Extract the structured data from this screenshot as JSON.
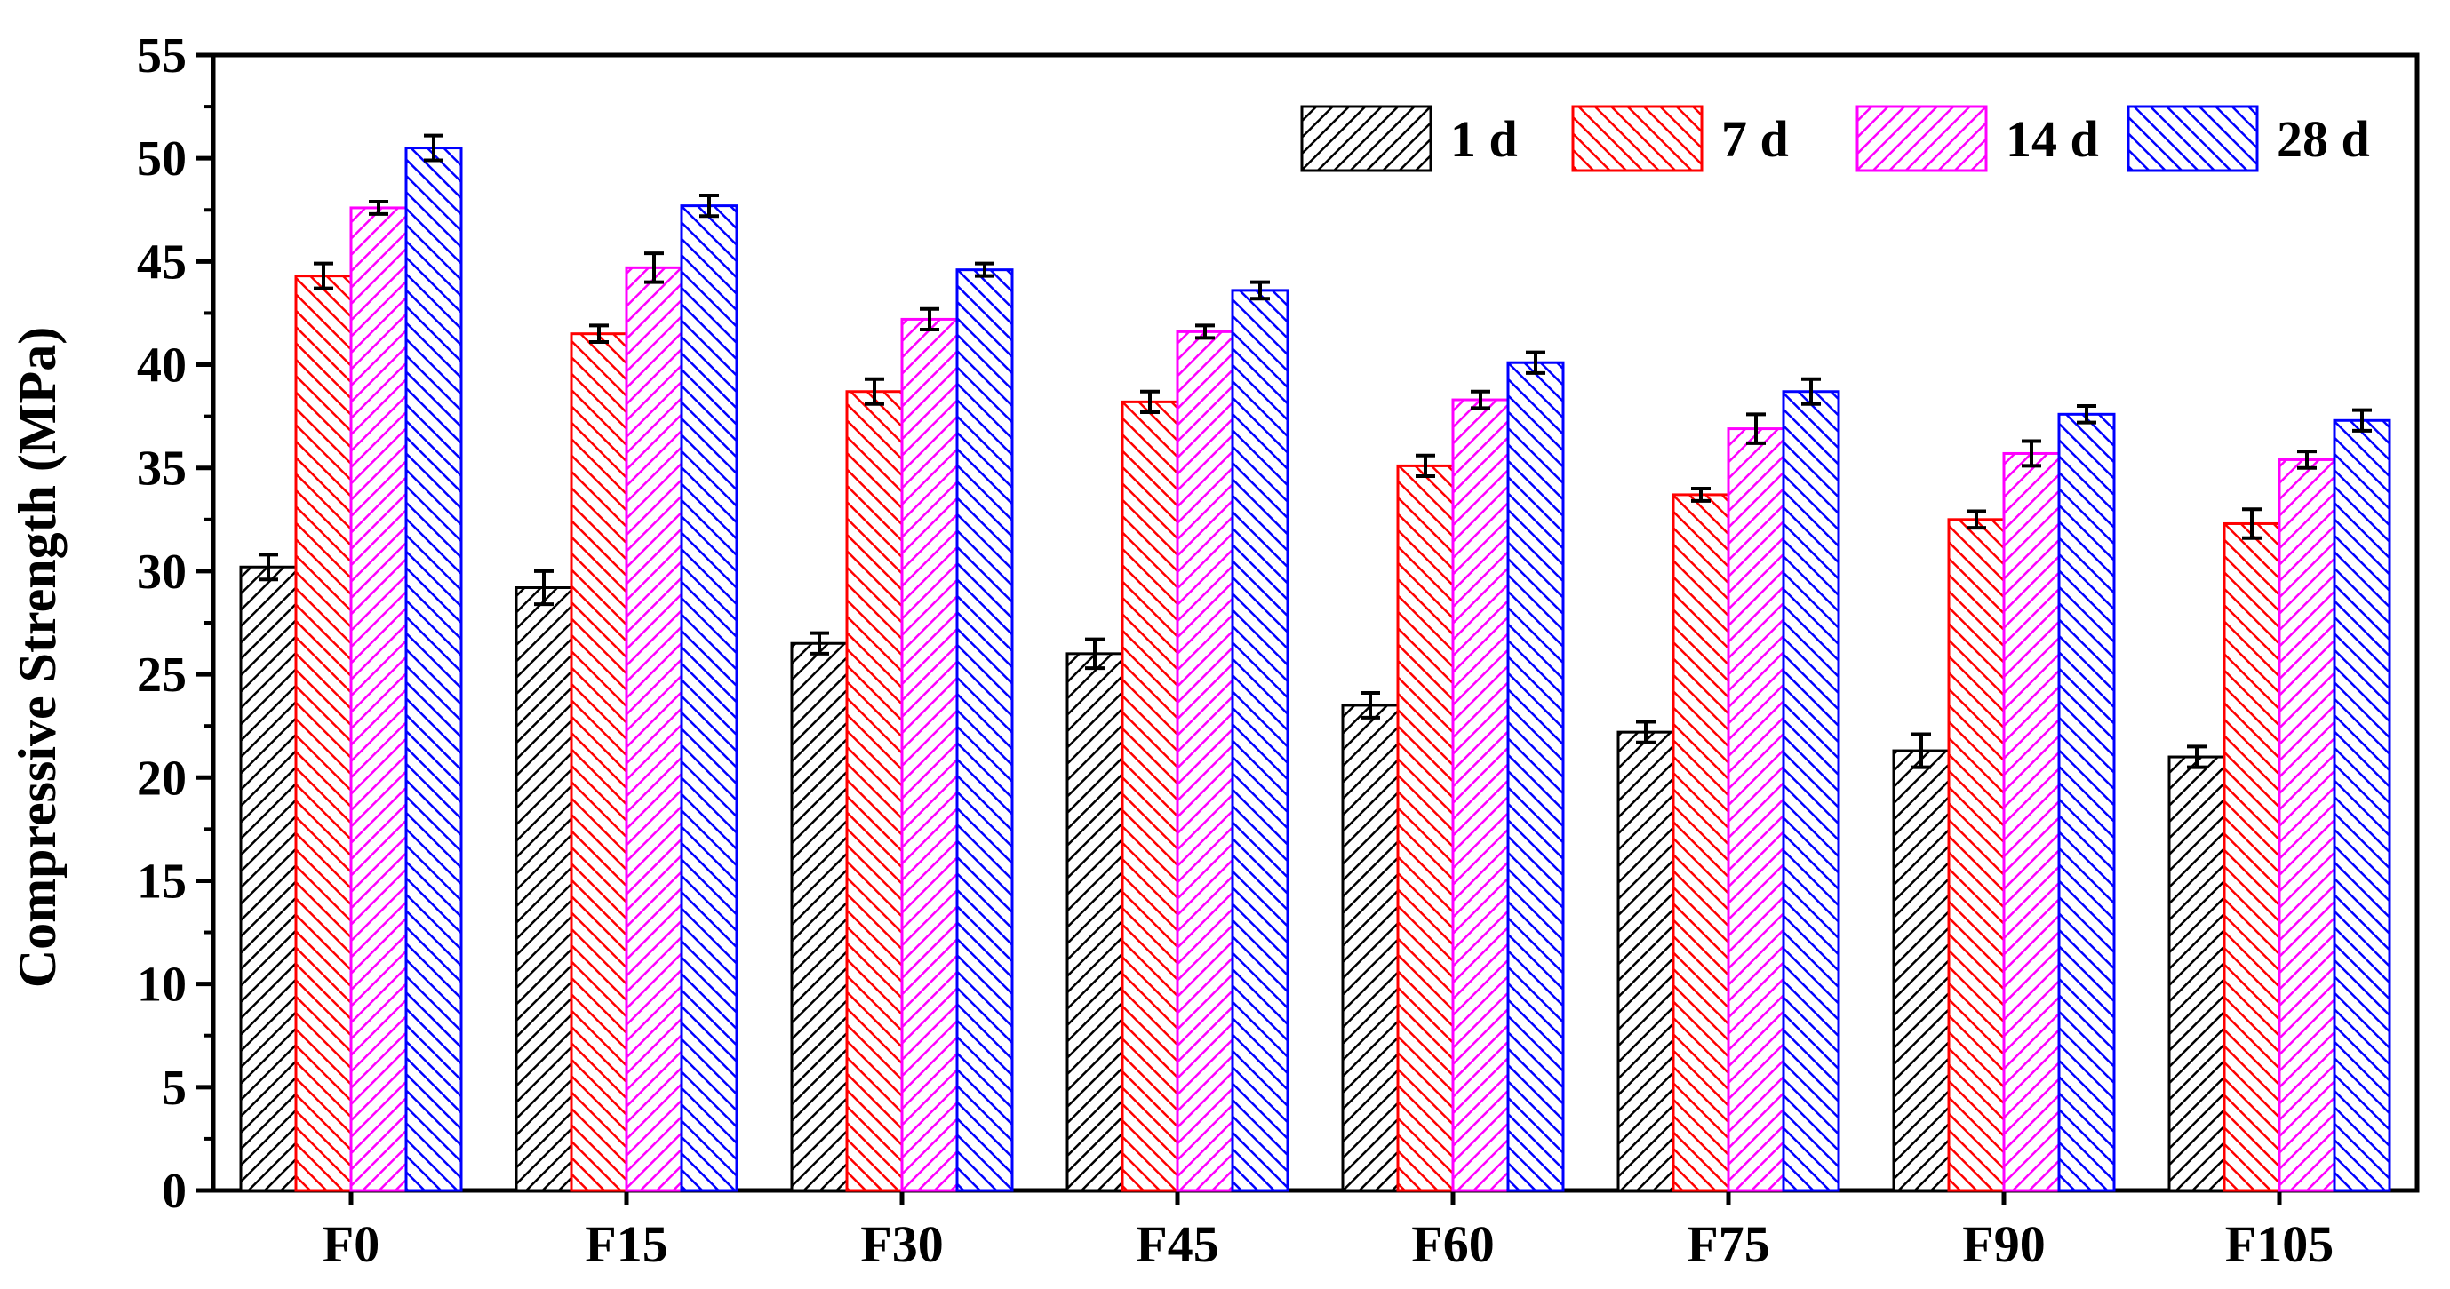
{
  "chart_data": {
    "type": "bar",
    "title": "",
    "xlabel": "",
    "ylabel": "Compressive Strength (MPa)",
    "ylim": [
      0,
      55
    ],
    "yticks": [
      0,
      5,
      10,
      15,
      20,
      25,
      30,
      35,
      40,
      45,
      50,
      55
    ],
    "grid": false,
    "legend_position": "top-right",
    "categories": [
      "F0",
      "F15",
      "F30",
      "F45",
      "F60",
      "F75",
      "F90",
      "F105"
    ],
    "series": [
      {
        "name": "1 d",
        "color": "#000000",
        "values": [
          30.2,
          29.2,
          26.5,
          26.0,
          23.5,
          22.2,
          21.3,
          21.0
        ],
        "errors": [
          0.6,
          0.8,
          0.5,
          0.7,
          0.6,
          0.5,
          0.8,
          0.5
        ]
      },
      {
        "name": "7 d",
        "color": "#ff0000",
        "values": [
          44.3,
          41.5,
          38.7,
          38.2,
          35.1,
          33.7,
          32.5,
          32.3
        ],
        "errors": [
          0.6,
          0.4,
          0.6,
          0.5,
          0.5,
          0.3,
          0.4,
          0.7
        ]
      },
      {
        "name": "14 d",
        "color": "#ff00ff",
        "values": [
          47.6,
          44.7,
          42.2,
          41.6,
          38.3,
          36.9,
          35.7,
          35.4
        ],
        "errors": [
          0.3,
          0.7,
          0.5,
          0.3,
          0.4,
          0.7,
          0.6,
          0.4
        ]
      },
      {
        "name": "28 d",
        "color": "#0000ff",
        "values": [
          50.5,
          47.7,
          44.6,
          43.6,
          40.1,
          38.7,
          37.6,
          37.3
        ],
        "errors": [
          0.6,
          0.5,
          0.3,
          0.4,
          0.5,
          0.6,
          0.4,
          0.5
        ]
      }
    ]
  }
}
